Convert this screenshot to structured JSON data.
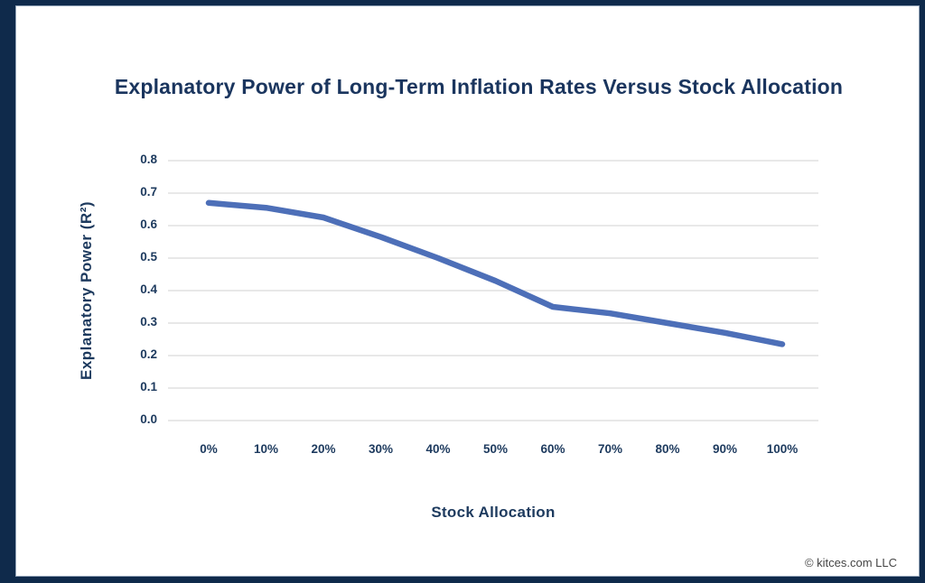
{
  "page": {
    "title": "Explanatory Power of Long-Term Inflation Rates Versus Stock Allocation",
    "copyright": "© kitces.com LLC"
  },
  "chart_data": {
    "type": "line",
    "title": "Explanatory Power of Long-Term Inflation Rates Versus Stock Allocation",
    "xlabel": "Stock Allocation",
    "ylabel": "Explanatory Power (R²)",
    "categories": [
      "0%",
      "10%",
      "20%",
      "30%",
      "40%",
      "50%",
      "60%",
      "70%",
      "80%",
      "90%",
      "100%"
    ],
    "series": [
      {
        "name": "Explanatory Power (R²)",
        "values": [
          0.67,
          0.655,
          0.625,
          0.565,
          0.5,
          0.43,
          0.35,
          0.33,
          0.3,
          0.27,
          0.235
        ]
      }
    ],
    "ylim": [
      0.0,
      0.8
    ],
    "yticks": [
      0.8,
      0.7,
      0.6,
      0.5,
      0.4,
      0.3,
      0.2,
      0.1,
      0.0
    ],
    "grid": true,
    "legend_position": "none",
    "line_color": "#4d6fb8",
    "gridline_color": "#e0e0e0"
  },
  "colors": {
    "frame_border": "#0f2a4b",
    "inner_edge": "#93a4b8",
    "navy_text": "#1d3a5e",
    "background": "#ffffff",
    "copyright_text": "#444444"
  }
}
